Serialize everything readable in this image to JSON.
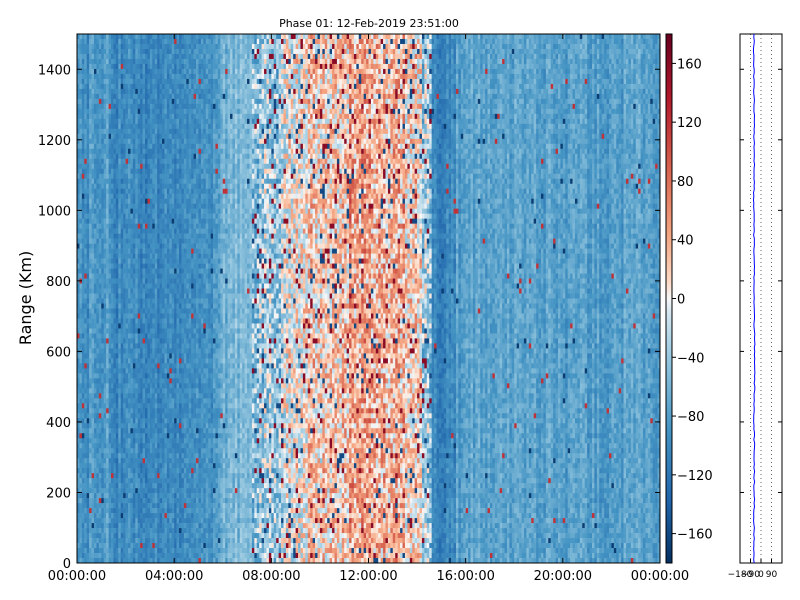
{
  "chart_data": [
    {
      "type": "heatmap",
      "title": "Phase 01: 12-Feb-2019 23:51:00",
      "ylabel": "Range (Km)",
      "xlabel": "",
      "x_ticks": [
        "00:00:00",
        "04:00:00",
        "08:00:00",
        "12:00:00",
        "16:00:00",
        "20:00:00",
        "00:00:00"
      ],
      "x_range_hours": [
        0,
        24
      ],
      "y_ticks": [
        0,
        200,
        400,
        600,
        800,
        1000,
        1200,
        1400
      ],
      "ylim": [
        0,
        1500
      ],
      "colorbar": {
        "ticks": [
          -160,
          -120,
          -80,
          -40,
          0,
          40,
          80,
          120,
          160
        ],
        "range": [
          -180,
          180
        ],
        "colormap": "RdBu_r",
        "low_color": "#053061",
        "mid_color": "#f7f7f7",
        "high_color": "#67001f"
      },
      "column_means_by_hour": [
        {
          "hour_start": 0.0,
          "hour_end": 0.5,
          "mean": -95
        },
        {
          "hour_start": 0.5,
          "hour_end": 1.5,
          "mean": -85
        },
        {
          "hour_start": 1.5,
          "hour_end": 3.0,
          "mean": -100
        },
        {
          "hour_start": 3.0,
          "hour_end": 4.5,
          "mean": -105
        },
        {
          "hour_start": 4.5,
          "hour_end": 5.7,
          "mean": -90
        },
        {
          "hour_start": 5.7,
          "hour_end": 6.3,
          "mean": -70
        },
        {
          "hour_start": 6.3,
          "hour_end": 7.2,
          "mean": -55
        },
        {
          "hour_start": 7.2,
          "hour_end": 8.5,
          "mean": -35
        },
        {
          "hour_start": 8.5,
          "hour_end": 9.3,
          "mean": 0
        },
        {
          "hour_start": 9.3,
          "hour_end": 10.3,
          "mean": 20
        },
        {
          "hour_start": 10.3,
          "hour_end": 11.2,
          "mean": 25
        },
        {
          "hour_start": 11.2,
          "hour_end": 12.5,
          "mean": 45
        },
        {
          "hour_start": 12.5,
          "hour_end": 13.5,
          "mean": 35
        },
        {
          "hour_start": 13.5,
          "hour_end": 14.2,
          "mean": 25
        },
        {
          "hour_start": 14.2,
          "hour_end": 14.6,
          "mean": -40
        },
        {
          "hour_start": 14.6,
          "hour_end": 15.6,
          "mean": -105
        },
        {
          "hour_start": 15.6,
          "hour_end": 16.0,
          "mean": -80
        },
        {
          "hour_start": 16.0,
          "hour_end": 20.0,
          "mean": -75
        },
        {
          "hour_start": 20.0,
          "hour_end": 24.0,
          "mean": -80
        }
      ]
    },
    {
      "type": "line",
      "title": "",
      "xlabel": "",
      "ylabel": "",
      "x_ticks": [
        "-180",
        "-90",
        "0",
        "90"
      ],
      "xlim": [
        -180,
        180
      ],
      "ylim": [
        0,
        1500
      ],
      "grid": true,
      "series": [
        {
          "color": "#0000ff",
          "y": [
            0,
            100,
            200,
            300,
            400,
            500,
            600,
            700,
            800,
            900,
            1000,
            1100,
            1200,
            1300,
            1400,
            1500
          ],
          "x": [
            -62,
            -60,
            -58,
            -57,
            -59,
            -56,
            -55,
            -57,
            -58,
            -60,
            -61,
            -59,
            -58,
            -60,
            -62,
            -60
          ]
        }
      ]
    }
  ]
}
